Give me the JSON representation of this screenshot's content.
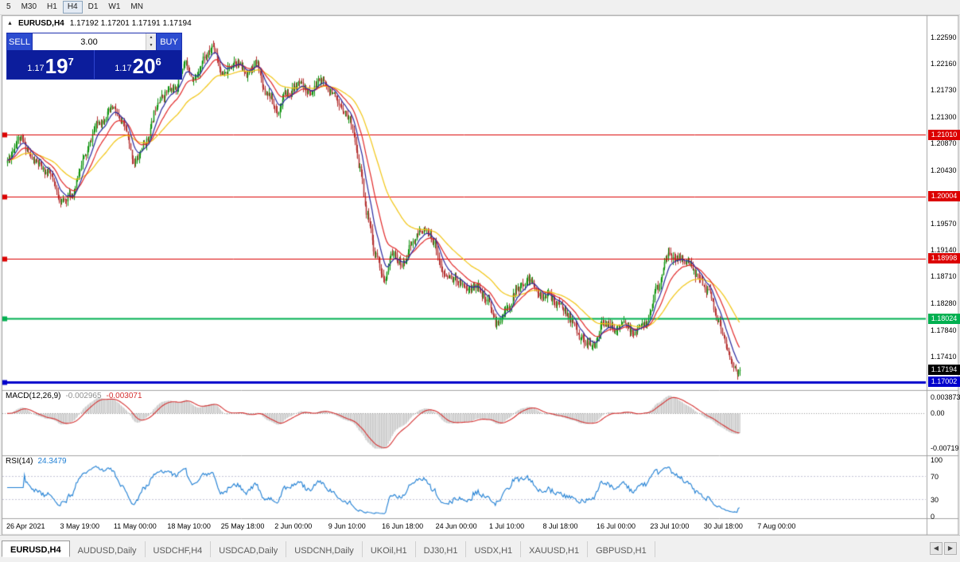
{
  "icons": {
    "collapse": "▲",
    "spinner_up": "▲",
    "spinner_down": "▼",
    "tab_scroll_left": "◀",
    "tab_scroll_right": "▶"
  },
  "toolbar": {
    "timeframes": [
      {
        "label": "5",
        "active": false
      },
      {
        "label": "M30",
        "active": false
      },
      {
        "label": "H1",
        "active": false
      },
      {
        "label": "H4",
        "active": true
      },
      {
        "label": "D1",
        "active": false
      },
      {
        "label": "W1",
        "active": false
      },
      {
        "label": "MN",
        "active": false
      }
    ]
  },
  "chart": {
    "symbol_title": "EURUSD,H4",
    "ohlc": "1.17192 1.17201 1.17191 1.17194",
    "one_click": {
      "sell_label": "SELL",
      "buy_label": "BUY",
      "volume": "3.00",
      "sell_price_small": "1.17",
      "sell_price_big": "19",
      "sell_price_sup": "7",
      "buy_price_small": "1.17",
      "buy_price_big": "20",
      "buy_price_sup": "6"
    },
    "price_axis": {
      "ticks": [
        "1.22590",
        "1.22160",
        "1.21730",
        "1.21300",
        "1.20870",
        "1.20430",
        "1.19570",
        "1.19140",
        "1.18710",
        "1.18280",
        "1.17840",
        "1.17410"
      ],
      "tags": [
        {
          "text": "1.21010",
          "value": 1.2101,
          "bg": "#dc0000"
        },
        {
          "text": "1.20004",
          "value": 1.20004,
          "bg": "#dc0000"
        },
        {
          "text": "1.18998",
          "value": 1.18998,
          "bg": "#dc0000"
        },
        {
          "text": "1.18024",
          "value": 1.18024,
          "bg": "#00b050"
        },
        {
          "text": "1.17194",
          "value": 1.17194,
          "bg": "#000000"
        },
        {
          "text": "1.17002",
          "value": 1.17002,
          "bg": "#0000cc"
        }
      ]
    },
    "hlines": [
      {
        "value": 1.2101,
        "color": "#dc0000",
        "width": 1
      },
      {
        "value": 1.20004,
        "color": "#dc0000",
        "width": 1
      },
      {
        "value": 1.18998,
        "color": "#dc0000",
        "width": 1
      },
      {
        "value": 1.18024,
        "color": "#00b050",
        "width": 2
      },
      {
        "value": 1.17002,
        "color": "#0000cc",
        "width": 3
      }
    ],
    "date_axis": [
      "26 Apr 2021",
      "3 May 19:00",
      "11 May 00:00",
      "18 May 10:00",
      "25 May 18:00",
      "2 Jun 00:00",
      "9 Jun 10:00",
      "16 Jun 18:00",
      "24 Jun 00:00",
      "1 Jul 10:00",
      "8 Jul 18:00",
      "16 Jul 00:00",
      "23 Jul 10:00",
      "30 Jul 18:00",
      "7 Aug 00:00"
    ],
    "macd": {
      "label": "MACD(12,26,9)",
      "value_main": "-0.002965",
      "value_signal": "-0.003071",
      "scale_top": "0.003873",
      "scale_zero": "0.00",
      "scale_bottom": "-0.00719",
      "hist_color": "#c2c2c2",
      "signal_color": "#d43030"
    },
    "rsi": {
      "label": "RSI(14)",
      "value": "24.3479",
      "scale": [
        "100",
        "70",
        "30",
        "0"
      ],
      "levels": [
        70,
        30
      ],
      "line_color": "#1f7fd4"
    }
  },
  "chart_data": {
    "type": "candlestick",
    "symbol": "EURUSD",
    "timeframe": "H4",
    "bars": 595,
    "seed": 11,
    "last_close": 1.17194,
    "price_axis_max": 1.2292,
    "price_axis_min": 1.16881,
    "up_color": "#0f930f",
    "down_color": "#b43030",
    "keypoints": [
      [
        0,
        1.2055
      ],
      [
        10,
        1.2085
      ],
      [
        23,
        1.206
      ],
      [
        33,
        1.2035
      ],
      [
        43,
        1.1995
      ],
      [
        52,
        1.2012
      ],
      [
        62,
        1.2065
      ],
      [
        75,
        1.2125
      ],
      [
        85,
        1.215
      ],
      [
        94,
        1.211
      ],
      [
        103,
        1.205
      ],
      [
        112,
        1.209
      ],
      [
        123,
        1.215
      ],
      [
        135,
        1.2172
      ],
      [
        144,
        1.2222
      ],
      [
        152,
        1.219
      ],
      [
        161,
        1.2228
      ],
      [
        167,
        1.2252
      ],
      [
        175,
        1.2205
      ],
      [
        184,
        1.2218
      ],
      [
        194,
        1.22
      ],
      [
        202,
        1.2222
      ],
      [
        210,
        1.2165
      ],
      [
        219,
        1.2128
      ],
      [
        226,
        1.2165
      ],
      [
        236,
        1.2182
      ],
      [
        246,
        1.216
      ],
      [
        254,
        1.219
      ],
      [
        262,
        1.2182
      ],
      [
        270,
        1.2148
      ],
      [
        278,
        1.2125
      ],
      [
        286,
        1.2052
      ],
      [
        292,
        1.1978
      ],
      [
        299,
        1.1908
      ],
      [
        306,
        1.1856
      ],
      [
        312,
        1.1906
      ],
      [
        320,
        1.1892
      ],
      [
        328,
        1.1922
      ],
      [
        337,
        1.1936
      ],
      [
        346,
        1.1926
      ],
      [
        354,
        1.1876
      ],
      [
        363,
        1.1862
      ],
      [
        373,
        1.1852
      ],
      [
        381,
        1.1866
      ],
      [
        390,
        1.1832
      ],
      [
        397,
        1.1792
      ],
      [
        405,
        1.1822
      ],
      [
        413,
        1.1856
      ],
      [
        422,
        1.1862
      ],
      [
        431,
        1.1836
      ],
      [
        439,
        1.1842
      ],
      [
        448,
        1.1822
      ],
      [
        456,
        1.1792
      ],
      [
        465,
        1.1772
      ],
      [
        475,
        1.1762
      ],
      [
        483,
        1.1792
      ],
      [
        492,
        1.1786
      ],
      [
        500,
        1.1806
      ],
      [
        509,
        1.1782
      ],
      [
        518,
        1.1792
      ],
      [
        527,
        1.1856
      ],
      [
        535,
        1.1906
      ],
      [
        544,
        1.1892
      ],
      [
        552,
        1.1886
      ],
      [
        561,
        1.1872
      ],
      [
        568,
        1.1846
      ],
      [
        576,
        1.1792
      ],
      [
        584,
        1.1756
      ],
      [
        589,
        1.1732
      ],
      [
        594,
        1.17194
      ]
    ],
    "moving_averages": [
      {
        "period": 50,
        "color": "#f2c511"
      },
      {
        "period": 21,
        "color": "#e22828"
      },
      {
        "period": 10,
        "color": "#2a2aa0"
      }
    ]
  },
  "tabs": {
    "items": [
      {
        "label": "EURUSD,H4",
        "active": true
      },
      {
        "label": "AUDUSD,Daily",
        "active": false
      },
      {
        "label": "USDCHF,H4",
        "active": false
      },
      {
        "label": "USDCAD,Daily",
        "active": false
      },
      {
        "label": "USDCNH,Daily",
        "active": false
      },
      {
        "label": "UKOil,H1",
        "active": false
      },
      {
        "label": "DJ30,H1",
        "active": false
      },
      {
        "label": "USDX,H1",
        "active": false
      },
      {
        "label": "XAUUSD,H1",
        "active": false
      },
      {
        "label": "GBPUSD,H1",
        "active": false
      }
    ]
  }
}
